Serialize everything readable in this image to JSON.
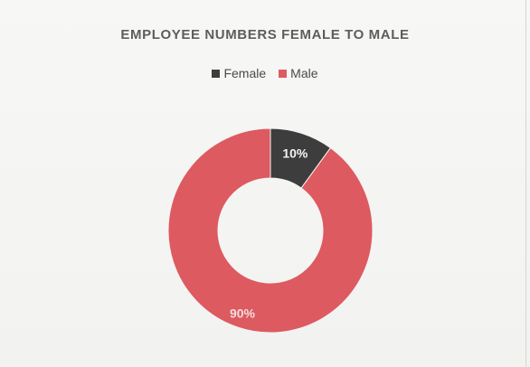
{
  "chart_data": {
    "type": "pie",
    "variant": "doughnut",
    "title": "EMPLOYEE NUMBERS FEMALE TO MALE",
    "legend_position": "top",
    "categories": [
      "Female",
      "Male"
    ],
    "values": [
      10,
      90
    ],
    "data_labels": [
      "10%",
      "90%"
    ],
    "colors": [
      "#3d3d3d",
      "#dd5a60"
    ],
    "label_colors": [
      "#f4f4f4",
      "#f6dcdc"
    ]
  }
}
